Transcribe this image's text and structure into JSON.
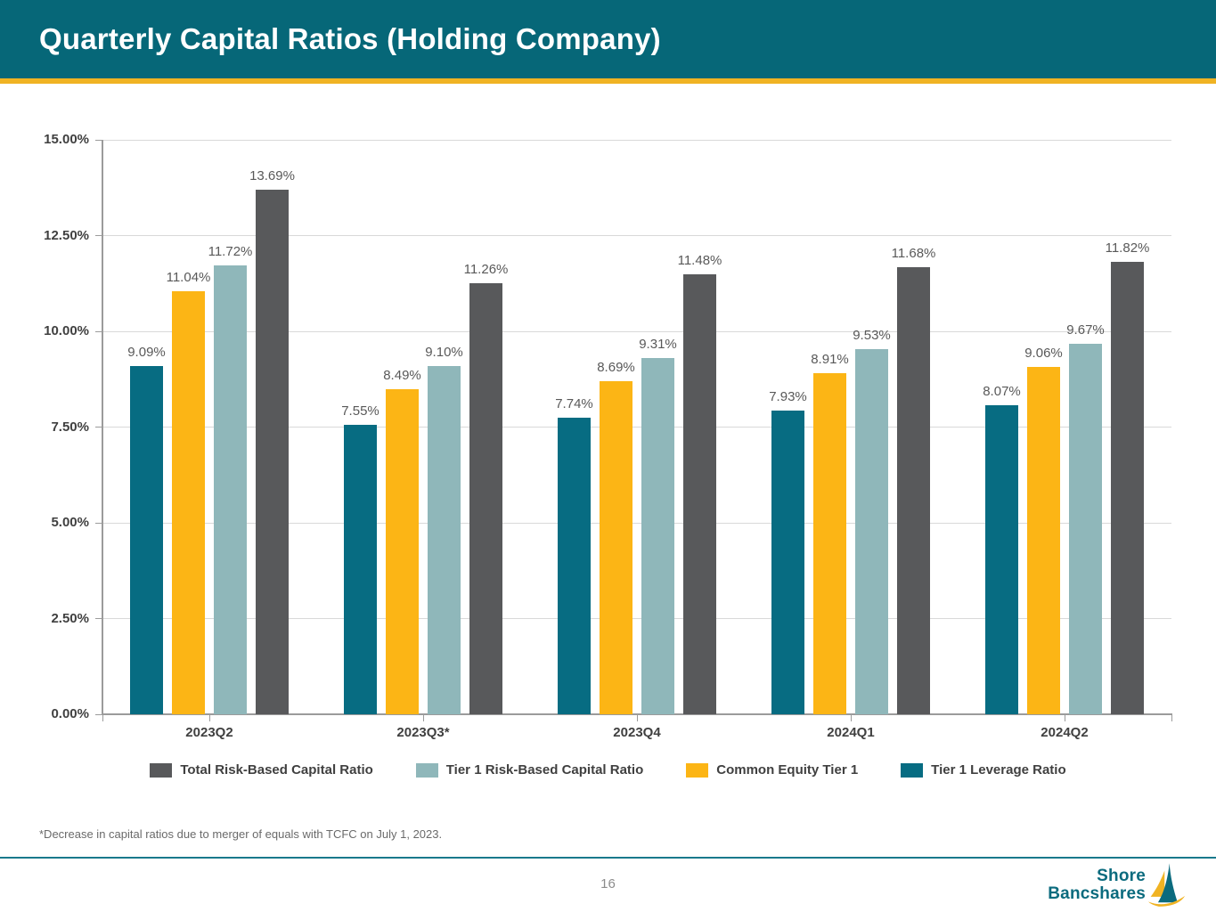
{
  "header": {
    "title": "Quarterly Capital Ratios (Holding Company)"
  },
  "chart_data": {
    "type": "bar",
    "title": "Quarterly Capital Ratios (Holding Company)",
    "categories": [
      "2023Q2",
      "2023Q3*",
      "2023Q4",
      "2024Q1",
      "2024Q2"
    ],
    "series": [
      {
        "name": "Tier 1 Leverage Ratio",
        "color": "#076C82",
        "values": [
          9.09,
          7.55,
          7.74,
          7.93,
          8.07
        ]
      },
      {
        "name": "Common Equity Tier 1",
        "color": "#FCB515",
        "values": [
          11.04,
          8.49,
          8.69,
          8.91,
          9.06
        ]
      },
      {
        "name": "Tier 1 Risk-Based Capital Ratio",
        "color": "#8FB7BA",
        "values": [
          11.72,
          9.1,
          9.31,
          9.53,
          9.67
        ]
      },
      {
        "name": "Total Risk-Based Capital Ratio",
        "color": "#58595B",
        "values": [
          13.69,
          11.26,
          11.48,
          11.68,
          11.82
        ]
      }
    ],
    "xlabel": "",
    "ylabel": "",
    "ylim": [
      0,
      15
    ],
    "ytick_step": 2.5,
    "ytick_labels": [
      "0.00%",
      "2.50%",
      "5.00%",
      "7.50%",
      "10.00%",
      "12.50%",
      "15.00%"
    ],
    "grid": true,
    "data_labels": true,
    "legend_position": "bottom"
  },
  "legend": {
    "items": [
      {
        "label": "Total Risk-Based Capital Ratio",
        "color": "#58595B"
      },
      {
        "label": "Tier 1 Risk-Based Capital Ratio",
        "color": "#8FB7BA"
      },
      {
        "label": "Common Equity Tier 1",
        "color": "#FCB515"
      },
      {
        "label": "Tier 1 Leverage Ratio",
        "color": "#076C82"
      }
    ]
  },
  "footnote": "*Decrease in capital ratios due to merger of equals with TCFC on July 1, 2023.",
  "footer": {
    "page_number": "16",
    "logo_line1": "Shore",
    "logo_line2": "Bancshares"
  },
  "colors": {
    "header_background": "#066778",
    "header_accent": "#F0B323",
    "footer_divider": "#19798C",
    "logo_text": "#0B6B7E",
    "gridline": "#D9D9D9",
    "axis": "#9b9b9b",
    "data_label": "#595959"
  }
}
